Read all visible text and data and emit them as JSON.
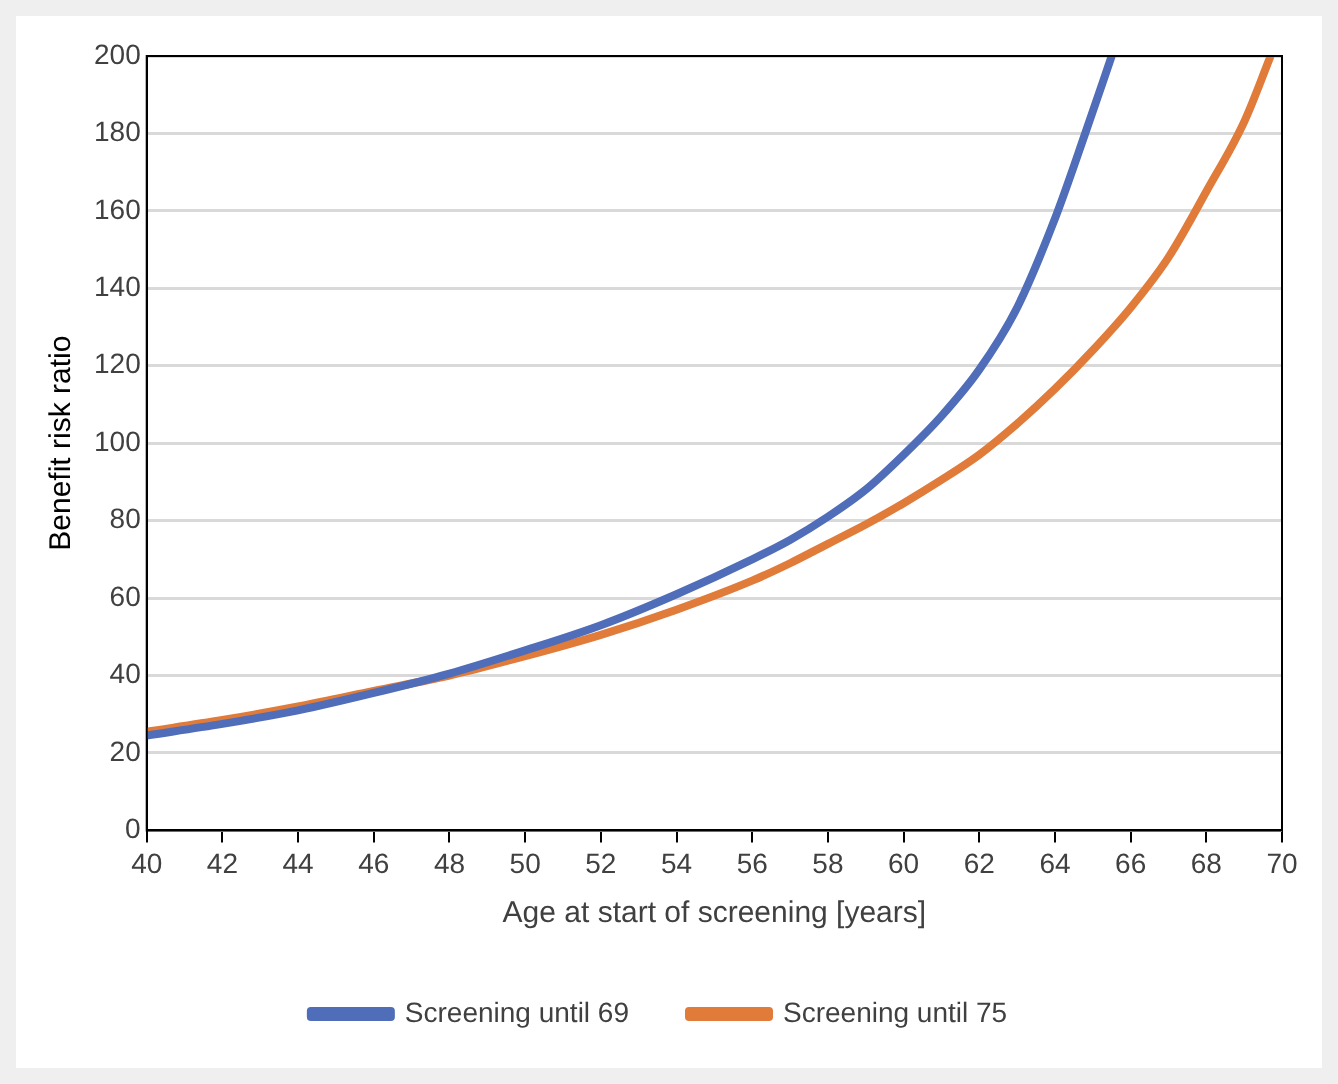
{
  "chart_data": {
    "type": "line",
    "xlabel": "Age at start of screening [years]",
    "ylabel": "Benefit risk ratio",
    "xlim": [
      40,
      70
    ],
    "xticks": [
      40,
      42,
      44,
      46,
      48,
      50,
      52,
      54,
      56,
      58,
      60,
      62,
      64,
      66,
      68,
      70
    ],
    "ylim": [
      0,
      200
    ],
    "yticks": [
      0,
      20,
      40,
      60,
      80,
      100,
      120,
      140,
      160,
      180,
      200
    ],
    "grid": "y",
    "legend": "bottom",
    "marker": "none",
    "line_style": "solid",
    "series": [
      {
        "name": "Screening until 69",
        "color": "#4f6db8",
        "x": [
          40,
          42,
          44,
          46,
          48,
          50,
          52,
          54,
          56,
          57,
          58,
          59,
          60,
          61,
          62,
          63,
          64,
          64.8,
          65.5
        ],
        "values": [
          24.5,
          27.5,
          31,
          35.5,
          40.5,
          46.5,
          53,
          61,
          70,
          75,
          81,
          88,
          97,
          107,
          119,
          135,
          158,
          180,
          200
        ]
      },
      {
        "name": "Screening until 75",
        "color": "#e07b39",
        "x": [
          40,
          42,
          44,
          46,
          48,
          50,
          52,
          54,
          56,
          57,
          58,
          59,
          60,
          61,
          62,
          63,
          64,
          65,
          66,
          67,
          68,
          69,
          69.7
        ],
        "values": [
          25.5,
          28.5,
          32,
          36,
          40,
          45,
          50.5,
          57,
          64.5,
          69,
          74,
          79,
          84.5,
          90.5,
          97,
          105,
          114,
          124,
          135,
          148,
          165,
          183,
          200
        ]
      }
    ]
  }
}
